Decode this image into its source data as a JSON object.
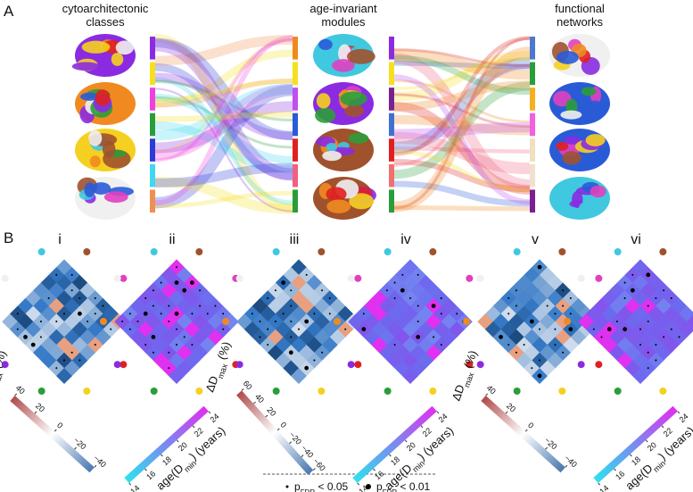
{
  "panel_a": {
    "label": "A",
    "columns": [
      {
        "lines": [
          "cytoarchitectonic",
          "classes"
        ]
      },
      {
        "lines": [
          "age-invariant",
          "modules"
        ]
      },
      {
        "lines": [
          "functional",
          "networks"
        ]
      }
    ]
  },
  "panel_b": {
    "label": "B",
    "subpanels": [
      "i",
      "ii",
      "iii",
      "iv",
      "v",
      "vi"
    ],
    "colorbars": [
      {
        "kind": "delta",
        "parts": [
          "ΔD",
          "max",
          " (%)"
        ],
        "ticks": [
          40,
          20,
          0,
          {
            "value": -20,
            "label": "−20"
          },
          {
            "value": -40,
            "label": "−40"
          }
        ]
      },
      {
        "kind": "age",
        "parts": [
          "age(D",
          "min",
          ") (years)"
        ],
        "ticks": [
          14,
          16,
          18,
          20,
          22,
          24
        ]
      },
      {
        "kind": "delta",
        "parts": [
          "ΔD",
          "max",
          " (%)"
        ],
        "ticks": [
          60,
          40,
          20,
          0,
          {
            "value": -20,
            "label": "−20"
          },
          {
            "value": -40,
            "label": "−40"
          },
          {
            "value": -60,
            "label": "−60"
          }
        ]
      },
      {
        "kind": "age",
        "parts": [
          "age(D",
          "min",
          ") (years)"
        ],
        "ticks": [
          14,
          16,
          18,
          20,
          22,
          24
        ]
      },
      {
        "kind": "delta",
        "parts": [
          "ΔD",
          "max",
          " (%)"
        ],
        "ticks": [
          40,
          20,
          0,
          {
            "value": -20,
            "label": "−20"
          },
          {
            "value": -40,
            "label": "−40"
          }
        ]
      },
      {
        "kind": "age",
        "parts": [
          "age(D",
          "min",
          ") (years)"
        ],
        "ticks": [
          14,
          16,
          18,
          20,
          22,
          24
        ]
      }
    ],
    "legend": [
      {
        "parts": [
          "p",
          "FDR",
          " < 0.05"
        ]
      },
      {
        "parts": [
          "p",
          "FDR",
          " < 0.01"
        ]
      }
    ]
  }
}
